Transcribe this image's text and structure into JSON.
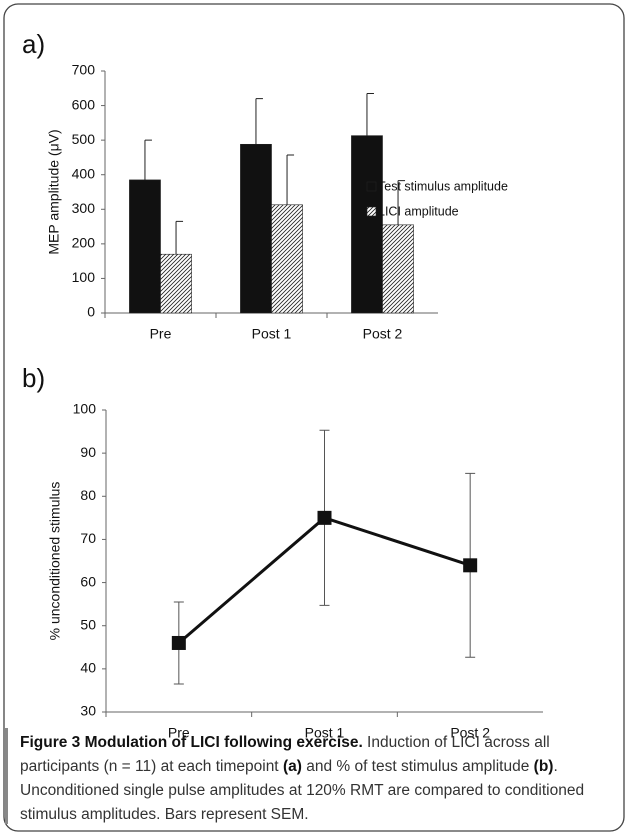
{
  "chart_data": [
    {
      "type": "bar",
      "panel": "a)",
      "ylabel": "MEP amplitude (μV)",
      "categories": [
        "Pre",
        "Post 1",
        "Post 2"
      ],
      "series": [
        {
          "name": "Test stimulus amplitude",
          "color": "#111111",
          "values": [
            385,
            488,
            513
          ],
          "errors": [
            115,
            132,
            122
          ]
        },
        {
          "name": "LICI amplitude",
          "color": "hatch",
          "values": [
            170,
            313,
            255
          ],
          "errors": [
            95,
            144,
            128
          ]
        }
      ],
      "ylim": [
        0,
        700
      ],
      "yticks": [
        0,
        100,
        200,
        300,
        400,
        500,
        600,
        700
      ],
      "legend": "right"
    },
    {
      "type": "line",
      "panel": "b)",
      "ylabel": "% unconditioned stimulus",
      "categories": [
        "Pre",
        "Post 1",
        "Post 2"
      ],
      "series": [
        {
          "color": "#111111",
          "values": [
            46,
            75,
            64
          ],
          "errors": [
            9.5,
            20.3,
            21.3
          ]
        }
      ],
      "ylim": [
        30,
        100
      ],
      "yticks": [
        30,
        40,
        50,
        60,
        70,
        80,
        90,
        100
      ]
    }
  ],
  "caption": {
    "title": "Figure 3 Modulation of LICI following exercise.",
    "text1": " Induction of LICI across all participants (n = 11) at each timepoint ",
    "label_a": "(a)",
    "text2": " and % of test stimulus amplitude ",
    "label_b": "(b)",
    "text3": ". Unconditioned single pulse amplitudes at 120% RMT are compared to conditioned stimulus amplitudes. Bars represent SEM."
  }
}
